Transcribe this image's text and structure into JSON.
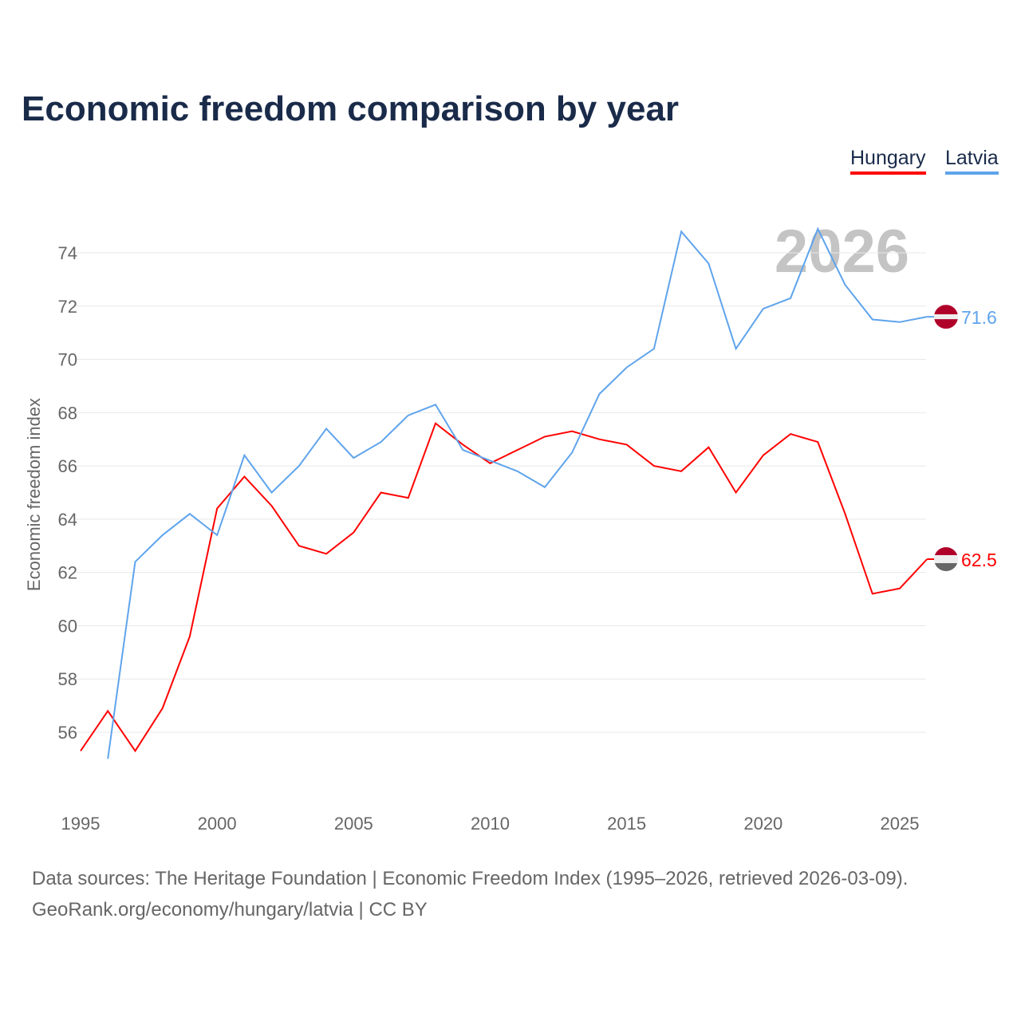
{
  "chart_data": {
    "type": "line",
    "title": "Economic freedom comparison by year",
    "xlabel": "",
    "ylabel": "Economic freedom index",
    "xlim": [
      1995,
      2026
    ],
    "ylim": [
      54,
      75
    ],
    "xticks": [
      1995,
      2000,
      2005,
      2010,
      2015,
      2020,
      2025
    ],
    "yticks": [
      56,
      58,
      60,
      62,
      64,
      66,
      68,
      70,
      72,
      74
    ],
    "grid": true,
    "legend_position": "top-right",
    "watermark_year": "2026",
    "series": [
      {
        "name": "Hungary",
        "color": "#ff0000",
        "end_label": "62.5",
        "x": [
          1995,
          1996,
          1997,
          1998,
          1999,
          2000,
          2001,
          2002,
          2003,
          2004,
          2005,
          2006,
          2007,
          2008,
          2009,
          2010,
          2011,
          2012,
          2013,
          2014,
          2015,
          2016,
          2017,
          2018,
          2019,
          2020,
          2021,
          2022,
          2023,
          2024,
          2025,
          2026
        ],
        "values": [
          55.3,
          56.8,
          55.3,
          56.9,
          59.6,
          64.4,
          65.6,
          64.5,
          63.0,
          62.7,
          63.5,
          65.0,
          64.8,
          67.6,
          66.8,
          66.1,
          66.6,
          67.1,
          67.3,
          67.0,
          66.8,
          66.0,
          65.8,
          66.7,
          65.0,
          66.4,
          67.2,
          66.9,
          64.2,
          61.2,
          61.4,
          62.5
        ]
      },
      {
        "name": "Latvia",
        "color": "#5fa4ec",
        "end_label": "71.6",
        "x": [
          1996,
          1997,
          1998,
          1999,
          2000,
          2001,
          2002,
          2003,
          2004,
          2005,
          2006,
          2007,
          2008,
          2009,
          2010,
          2011,
          2012,
          2013,
          2014,
          2015,
          2016,
          2017,
          2018,
          2019,
          2020,
          2021,
          2022,
          2023,
          2024,
          2025,
          2026
        ],
        "values": [
          55.0,
          62.4,
          63.4,
          64.2,
          63.4,
          66.4,
          65.0,
          66.0,
          67.4,
          66.3,
          66.9,
          67.9,
          68.3,
          66.6,
          66.2,
          65.8,
          65.2,
          66.5,
          68.7,
          69.7,
          70.4,
          74.8,
          73.6,
          70.4,
          71.9,
          72.3,
          74.9,
          72.8,
          71.5,
          71.4,
          71.6
        ]
      }
    ]
  },
  "footer": {
    "sources": "Data sources: The Heritage Foundation | Economic Freedom Index (1995–2026, retrieved 2026-03-09).",
    "credit": "GeoRank.org/economy/hungary/latvia | CC BY"
  }
}
